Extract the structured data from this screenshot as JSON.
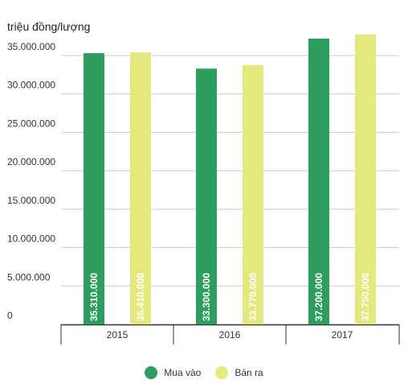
{
  "chart_data": {
    "type": "bar",
    "unit_label": "triệu đồng/lượng",
    "categories": [
      "2015",
      "2016",
      "2017"
    ],
    "series": [
      {
        "name": "Mua vào",
        "color": "#2e9e5e",
        "values": [
          35310000,
          33300000,
          37200000
        ],
        "data_labels": [
          "35.310.000",
          "33.300.000",
          "37.200.000"
        ]
      },
      {
        "name": "Bán ra",
        "color": "#e5e97d",
        "values": [
          35410000,
          33770000,
          37750000
        ],
        "data_labels": [
          "35.410.000",
          "33.770.000",
          "37.750.000"
        ]
      }
    ],
    "ylim": [
      0,
      37750000
    ],
    "y_ticks": [
      0,
      5000000,
      10000000,
      15000000,
      20000000,
      25000000,
      30000000,
      35000000
    ],
    "y_tick_labels": [
      "0",
      "5.000.000",
      "10.000.000",
      "15.000.000",
      "20.000.000",
      "25.000.000",
      "30.000.000",
      "35.000.000"
    ],
    "grid": true,
    "legend_position": "bottom"
  }
}
